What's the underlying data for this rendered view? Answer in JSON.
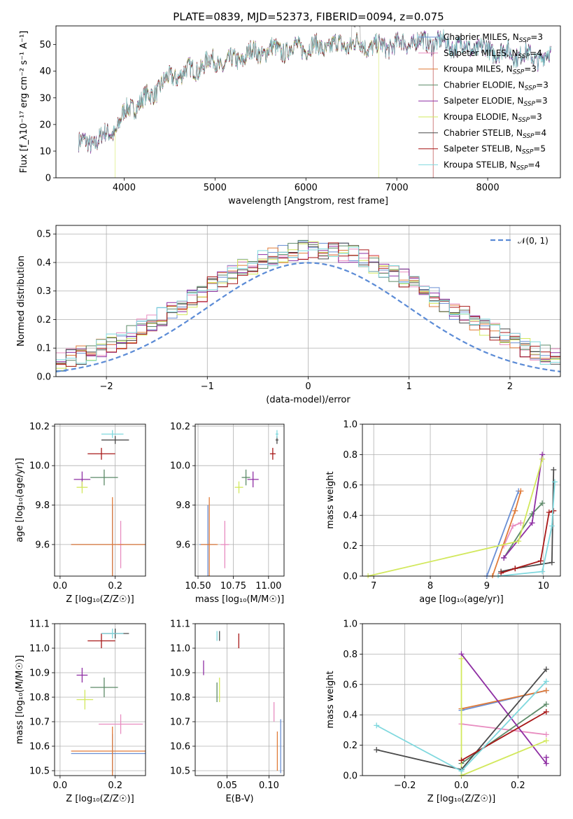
{
  "figure": {
    "title": "PLATE=0839, MJD=52373, FIBERID=0094, z=0.075"
  },
  "colors": {
    "chabrier_miles": "#6a8fd4",
    "salpeter_miles": "#e88cc0",
    "kroupa_miles": "#e07b39",
    "chabrier_elodie": "#5c8a68",
    "salpeter_elodie": "#8e2ea3",
    "kroupa_elodie": "#d2e85c",
    "chabrier_stelib": "#4a4a4a",
    "salpeter_stelib": "#a81818",
    "kroupa_stelib": "#7fd8de",
    "data": "#9a9a9a",
    "gaussian": "#5b8bd6",
    "grid": "#b0b0b0"
  },
  "chart_data": [
    {
      "id": "spectrum",
      "type": "line",
      "title": "PLATE=0839, MJD=52373, FIBERID=0094, z=0.075",
      "xlabel": "wavelength [Angstrom, rest frame]",
      "ylabel": "Flux [f_λ10⁻¹⁷ erg cm⁻² s⁻¹ A⁻¹]",
      "xlim": [
        3250,
        8800
      ],
      "ylim": [
        0,
        57
      ],
      "xticks": [
        4000,
        5000,
        6000,
        7000,
        8000
      ],
      "yticks": [
        0,
        10,
        20,
        30,
        40,
        50
      ],
      "grid": false,
      "legend_position": "top-right",
      "legend": [
        "Chabrier MILES, N_SSP=3",
        "Salpeter MILES, N_SSP=4",
        "Kroupa MILES, N_SSP=3",
        "Chabrier ELODIE, N_SSP=3",
        "Salpeter ELODIE, N_SSP=3",
        "Kroupa ELODIE, N_SSP=3",
        "Chabrier STELIB, N_SSP=4",
        "Salpeter STELIB, N_SSP=5",
        "Kroupa STELIB, N_SSP=4"
      ],
      "continuum": {
        "x": [
          3500,
          3600,
          3700,
          3800,
          3900,
          4000,
          4100,
          4200,
          4300,
          4400,
          4500,
          4600,
          4700,
          4800,
          4900,
          5000,
          5100,
          5200,
          5300,
          5400,
          5500,
          5600,
          5700,
          5800,
          5900,
          6000,
          6200,
          6400,
          6600,
          6800,
          7000,
          7200,
          7400,
          7600,
          7800,
          8000,
          8200,
          8400,
          8600,
          8700
        ],
        "y": [
          13,
          13,
          14,
          16,
          18,
          24,
          27,
          29,
          31,
          35,
          37,
          39,
          40,
          41,
          43,
          44,
          42,
          44,
          45,
          47,
          47,
          48,
          48,
          48,
          49,
          49,
          49,
          50,
          50,
          49,
          50,
          51,
          51,
          50,
          49,
          48,
          47,
          46,
          45,
          46
        ]
      },
      "model_cutoffs": {
        "Kroupa ELODIE": [
          3900,
          6800
        ],
        "Salpeter STELIB": [
          3500,
          7400
        ]
      }
    },
    {
      "id": "residuals",
      "type": "line",
      "xlabel": "(data-model)/error",
      "ylabel": "Normed distribution",
      "xlim": [
        -2.5,
        2.5
      ],
      "ylim": [
        0,
        0.53
      ],
      "xticks": [
        -2,
        -1,
        0,
        1,
        2
      ],
      "yticks": [
        0.0,
        0.1,
        0.2,
        0.3,
        0.4,
        0.5
      ],
      "grid": true,
      "legend_position": "top-right",
      "gaussian_label": "𝒩(0, 1)",
      "bin_width": 0.1,
      "bin_start": -2.5,
      "histogram_series": 9
    },
    {
      "id": "age_vs_Z",
      "type": "scatter",
      "xlabel": "Z [log₁₀(Z/Z☉)]",
      "ylabel": "age  [log₁₀(age/yr)]",
      "xlim": [
        -0.02,
        0.31
      ],
      "ylim": [
        9.44,
        10.21
      ],
      "xticks": [
        0.0,
        0.2
      ],
      "yticks": [
        9.6,
        9.8,
        10.0,
        10.2
      ],
      "grid": true,
      "points": [
        {
          "series": "Chabrier MILES",
          "x": 0.19,
          "y": 9.6,
          "xerr": 0.15,
          "yerr": 0.2
        },
        {
          "series": "Salpeter MILES",
          "x": 0.22,
          "y": 9.6,
          "xerr": 0.01,
          "yerr": 0.12
        },
        {
          "series": "Kroupa MILES",
          "x": 0.19,
          "y": 9.6,
          "xerr": 0.15,
          "yerr": 0.24
        },
        {
          "series": "Chabrier ELODIE",
          "x": 0.16,
          "y": 9.94,
          "xerr": 0.05,
          "yerr": 0.04
        },
        {
          "series": "Salpeter ELODIE",
          "x": 0.08,
          "y": 9.93,
          "xerr": 0.03,
          "yerr": 0.04
        },
        {
          "series": "Kroupa ELODIE",
          "x": 0.08,
          "y": 9.89,
          "xerr": 0.02,
          "yerr": 0.03
        },
        {
          "series": "Chabrier STELIB",
          "x": 0.2,
          "y": 10.13,
          "xerr": 0.05,
          "yerr": 0.02
        },
        {
          "series": "Salpeter STELIB",
          "x": 0.15,
          "y": 10.06,
          "xerr": 0.05,
          "yerr": 0.03
        },
        {
          "series": "Kroupa STELIB",
          "x": 0.19,
          "y": 10.16,
          "xerr": 0.04,
          "yerr": 0.02
        }
      ]
    },
    {
      "id": "age_vs_mass",
      "type": "scatter",
      "xlabel": "mass [log₁₀(M/M☉)]",
      "ylabel": "",
      "xlim": [
        10.48,
        11.11
      ],
      "ylim": [
        9.44,
        10.21
      ],
      "xticks": [
        10.5,
        10.75,
        11.0
      ],
      "yticks": [
        9.6,
        9.8,
        10.0,
        10.2
      ],
      "grid": true,
      "points": [
        {
          "series": "Chabrier MILES",
          "x": 10.57,
          "y": 9.6,
          "xerr": 0.06,
          "yerr": 0.2
        },
        {
          "series": "Salpeter MILES",
          "x": 10.69,
          "y": 9.6,
          "xerr": 0.03,
          "yerr": 0.12
        },
        {
          "series": "Kroupa MILES",
          "x": 10.58,
          "y": 9.6,
          "xerr": 0.06,
          "yerr": 0.24
        },
        {
          "series": "Chabrier ELODIE",
          "x": 10.84,
          "y": 9.94,
          "xerr": 0.03,
          "yerr": 0.04
        },
        {
          "series": "Salpeter ELODIE",
          "x": 10.89,
          "y": 9.93,
          "xerr": 0.04,
          "yerr": 0.04
        },
        {
          "series": "Kroupa ELODIE",
          "x": 10.79,
          "y": 9.89,
          "xerr": 0.03,
          "yerr": 0.03
        },
        {
          "series": "Chabrier STELIB",
          "x": 11.06,
          "y": 10.13,
          "xerr": 0.01,
          "yerr": 0.02
        },
        {
          "series": "Salpeter STELIB",
          "x": 11.03,
          "y": 10.06,
          "xerr": 0.02,
          "yerr": 0.03
        },
        {
          "series": "Kroupa STELIB",
          "x": 11.06,
          "y": 10.16,
          "xerr": 0.01,
          "yerr": 0.02
        }
      ]
    },
    {
      "id": "weight_vs_age",
      "type": "line",
      "xlabel": "age  [log₁₀(age/yr)]",
      "ylabel": "mass weight",
      "xlim": [
        6.8,
        10.3
      ],
      "ylim": [
        0,
        1.0
      ],
      "xticks": [
        7,
        8,
        9,
        10
      ],
      "yticks": [
        0.0,
        0.2,
        0.4,
        0.6,
        0.8,
        1.0
      ],
      "grid": true,
      "series": [
        {
          "name": "Chabrier MILES",
          "x": [
            9.0,
            9.56
          ],
          "y": [
            0.0,
            0.56
          ]
        },
        {
          "name": "Salpeter MILES",
          "x": [
            9.3,
            9.46,
            9.6
          ],
          "y": [
            0.2,
            0.33,
            0.35
          ]
        },
        {
          "name": "Kroupa MILES",
          "x": [
            9.1,
            9.5,
            9.6
          ],
          "y": [
            0.0,
            0.43,
            0.56
          ]
        },
        {
          "name": "Chabrier ELODIE",
          "x": [
            9.3,
            9.8,
            9.98
          ],
          "y": [
            0.12,
            0.41,
            0.48
          ]
        },
        {
          "name": "Salpeter ELODIE",
          "x": [
            9.3,
            9.8,
            9.98
          ],
          "y": [
            0.12,
            0.35,
            0.8
          ]
        },
        {
          "name": "Kroupa ELODIE",
          "x": [
            6.9,
            9.56,
            9.98
          ],
          "y": [
            0.0,
            0.23,
            0.77
          ]
        },
        {
          "name": "Chabrier STELIB",
          "x": [
            9.25,
            9.5,
            10.15,
            10.18
          ],
          "y": [
            0.03,
            0.05,
            0.09,
            0.7
          ]
        },
        {
          "name": "Salpeter STELIB",
          "x": [
            9.25,
            9.5,
            9.95,
            10.1,
            10.18
          ],
          "y": [
            0.02,
            0.05,
            0.1,
            0.42,
            0.43
          ]
        },
        {
          "name": "Kroupa STELIB",
          "x": [
            9.2,
            9.98,
            10.15,
            10.2
          ],
          "y": [
            0.0,
            0.03,
            0.33,
            0.62
          ]
        }
      ]
    },
    {
      "id": "mass_vs_Z",
      "type": "scatter",
      "xlabel": "Z [log₁₀(Z/Z☉)]",
      "ylabel": "mass [log₁₀(M/M☉)]",
      "xlim": [
        -0.02,
        0.31
      ],
      "ylim": [
        10.48,
        11.1
      ],
      "xticks": [
        0.0,
        0.2
      ],
      "yticks": [
        10.5,
        10.6,
        10.7,
        10.8,
        10.9,
        11.0,
        11.1
      ],
      "grid": true,
      "points": [
        {
          "series": "Chabrier MILES",
          "x": 0.19,
          "y": 10.57,
          "xerr": 0.15,
          "yerr": 0.08
        },
        {
          "series": "Salpeter MILES",
          "x": 0.22,
          "y": 10.69,
          "xerr": 0.08,
          "yerr": 0.04
        },
        {
          "series": "Kroupa MILES",
          "x": 0.19,
          "y": 10.58,
          "xerr": 0.15,
          "yerr": 0.1
        },
        {
          "series": "Chabrier ELODIE",
          "x": 0.16,
          "y": 10.84,
          "xerr": 0.05,
          "yerr": 0.04
        },
        {
          "series": "Salpeter ELODIE",
          "x": 0.08,
          "y": 10.89,
          "xerr": 0.02,
          "yerr": 0.03
        },
        {
          "series": "Kroupa ELODIE",
          "x": 0.09,
          "y": 10.79,
          "xerr": 0.03,
          "yerr": 0.04
        },
        {
          "series": "Chabrier STELIB",
          "x": 0.2,
          "y": 11.06,
          "xerr": 0.05,
          "yerr": 0.02
        },
        {
          "series": "Salpeter STELIB",
          "x": 0.15,
          "y": 11.03,
          "xerr": 0.05,
          "yerr": 0.03
        },
        {
          "series": "Kroupa STELIB",
          "x": 0.19,
          "y": 11.06,
          "xerr": 0.04,
          "yerr": 0.02
        }
      ]
    },
    {
      "id": "mass_vs_ebv",
      "type": "scatter",
      "xlabel": "E(B-V)",
      "ylabel": "",
      "xlim": [
        0.012,
        0.118
      ],
      "ylim": [
        10.48,
        11.1
      ],
      "xticks": [
        0.05,
        0.1
      ],
      "yticks": [
        10.5,
        10.6,
        10.7,
        10.8,
        10.9,
        11.0,
        11.1
      ],
      "grid": true,
      "points": [
        {
          "series": "Chabrier MILES",
          "x": 0.114,
          "y": 10.6,
          "yerr": 0.11
        },
        {
          "series": "Salpeter MILES",
          "x": 0.106,
          "y": 10.74,
          "yerr": 0.04
        },
        {
          "series": "Kroupa MILES",
          "x": 0.11,
          "y": 10.58,
          "yerr": 0.08
        },
        {
          "series": "Chabrier ELODIE",
          "x": 0.038,
          "y": 10.82,
          "yerr": 0.04
        },
        {
          "series": "Salpeter ELODIE",
          "x": 0.022,
          "y": 10.92,
          "yerr": 0.03
        },
        {
          "series": "Kroupa ELODIE",
          "x": 0.041,
          "y": 10.83,
          "yerr": 0.05
        },
        {
          "series": "Chabrier STELIB",
          "x": 0.041,
          "y": 11.05,
          "yerr": 0.02
        },
        {
          "series": "Salpeter STELIB",
          "x": 0.064,
          "y": 11.03,
          "yerr": 0.03
        },
        {
          "series": "Kroupa STELIB",
          "x": 0.038,
          "y": 11.05,
          "yerr": 0.02
        }
      ]
    },
    {
      "id": "weight_vs_Z",
      "type": "line",
      "xlabel": "Z [log₁₀(Z/Z☉)]",
      "ylabel": "mass weight",
      "xlim": [
        -0.35,
        0.35
      ],
      "ylim": [
        0,
        1.0
      ],
      "xticks": [
        -0.2,
        0.0,
        0.2
      ],
      "yticks": [
        0.0,
        0.2,
        0.4,
        0.6,
        0.8,
        1.0
      ],
      "grid": true,
      "series": [
        {
          "name": "Chabrier MILES",
          "x": [
            0.0,
            0.3
          ],
          "y": [
            0.43,
            0.56
          ]
        },
        {
          "name": "Salpeter MILES",
          "x": [
            0.0,
            0.3
          ],
          "y": [
            0.34,
            0.27
          ]
        },
        {
          "name": "Kroupa MILES",
          "x": [
            0.0,
            0.3
          ],
          "y": [
            0.44,
            0.56
          ]
        },
        {
          "name": "Chabrier ELODIE",
          "x": [
            0.0,
            0.3
          ],
          "y": [
            0.08,
            0.47
          ]
        },
        {
          "name": "Salpeter ELODIE",
          "x": [
            0.0,
            0.3,
            0.3
          ],
          "y": [
            0.8,
            0.08,
            0.12
          ]
        },
        {
          "name": "Kroupa ELODIE",
          "x": [
            0.0,
            0.0,
            0.3
          ],
          "y": [
            0.77,
            0.0,
            0.23
          ]
        },
        {
          "name": "Chabrier STELIB",
          "x": [
            -0.3,
            0.0,
            0.3
          ],
          "y": [
            0.17,
            0.04,
            0.7
          ]
        },
        {
          "name": "Salpeter STELIB",
          "x": [
            0.0,
            0.3
          ],
          "y": [
            0.1,
            0.42
          ]
        },
        {
          "name": "Kroupa STELIB",
          "x": [
            -0.3,
            0.0,
            0.3
          ],
          "y": [
            0.33,
            0.03,
            0.62
          ]
        }
      ]
    }
  ]
}
